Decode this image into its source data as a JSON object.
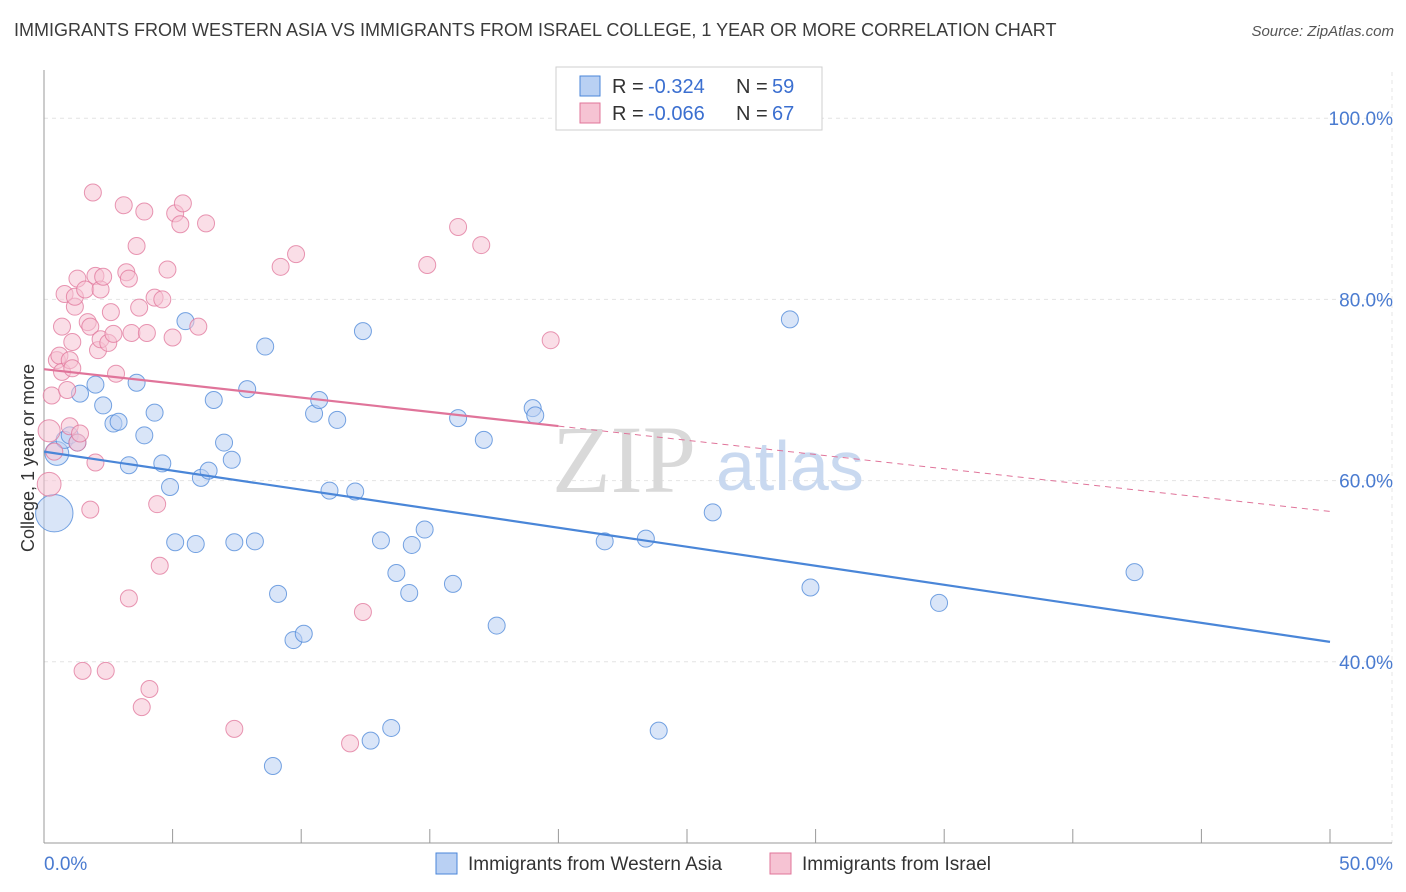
{
  "title": "IMMIGRANTS FROM WESTERN ASIA VS IMMIGRANTS FROM ISRAEL COLLEGE, 1 YEAR OR MORE CORRELATION CHART",
  "source": "Source: ZipAtlas.com",
  "watermark": {
    "zip": "ZIP",
    "atlas": "atlas"
  },
  "legend": {
    "r_label": "R =",
    "n_label": "N =",
    "series": [
      {
        "r": "-0.324",
        "n": "59"
      },
      {
        "r": "-0.066",
        "n": "67"
      }
    ]
  },
  "chart_data": {
    "type": "scatter",
    "title": "IMMIGRANTS FROM WESTERN ASIA VS IMMIGRANTS FROM ISRAEL COLLEGE, 1 YEAR OR MORE CORRELATION CHART",
    "xlabel": "",
    "ylabel": "College, 1 year or more",
    "xlim": [
      0,
      50
    ],
    "ylim": [
      20,
      104
    ],
    "x_tick_labels": [
      {
        "value": 0,
        "label": "0.0%"
      },
      {
        "value": 50,
        "label": "50.0%"
      }
    ],
    "y_tick_labels": [
      {
        "value": 40,
        "label": "40.0%"
      },
      {
        "value": 60,
        "label": "60.0%"
      },
      {
        "value": 80,
        "label": "80.0%"
      },
      {
        "value": 100,
        "label": "100.0%"
      }
    ],
    "x_minor_ticks": [
      0,
      5,
      10,
      15,
      20,
      25,
      30,
      35,
      40,
      45,
      50
    ],
    "grid": true,
    "legend_position": "top-center",
    "series": [
      {
        "name": "Immigrants from Western Asia",
        "color": "#4a86d8",
        "fill": "#b9d0f3",
        "trend": {
          "x0": 0,
          "y0": 63.2,
          "x1": 50,
          "y1": 42.2,
          "dashed_from": null
        },
        "points": [
          {
            "x": 0.4,
            "y": 56.4,
            "s": 2.2
          },
          {
            "x": 0.5,
            "y": 63.0,
            "s": 1.4
          },
          {
            "x": 0.8,
            "y": 64.5
          },
          {
            "x": 1.0,
            "y": 65.0
          },
          {
            "x": 1.3,
            "y": 64.2
          },
          {
            "x": 1.4,
            "y": 69.6
          },
          {
            "x": 2.0,
            "y": 70.6
          },
          {
            "x": 2.3,
            "y": 68.3
          },
          {
            "x": 2.7,
            "y": 66.3
          },
          {
            "x": 2.9,
            "y": 66.5
          },
          {
            "x": 3.3,
            "y": 61.7
          },
          {
            "x": 3.6,
            "y": 70.8
          },
          {
            "x": 3.9,
            "y": 65.0
          },
          {
            "x": 4.3,
            "y": 67.5
          },
          {
            "x": 4.6,
            "y": 61.9
          },
          {
            "x": 4.9,
            "y": 59.3
          },
          {
            "x": 5.1,
            "y": 53.2
          },
          {
            "x": 5.5,
            "y": 77.6
          },
          {
            "x": 5.9,
            "y": 53.0
          },
          {
            "x": 6.1,
            "y": 60.3
          },
          {
            "x": 6.4,
            "y": 61.1
          },
          {
            "x": 6.6,
            "y": 68.9
          },
          {
            "x": 7.0,
            "y": 64.2
          },
          {
            "x": 7.3,
            "y": 62.3
          },
          {
            "x": 7.4,
            "y": 53.2
          },
          {
            "x": 7.9,
            "y": 70.1
          },
          {
            "x": 8.2,
            "y": 53.3
          },
          {
            "x": 8.6,
            "y": 74.8
          },
          {
            "x": 8.9,
            "y": 28.5
          },
          {
            "x": 9.1,
            "y": 47.5
          },
          {
            "x": 9.7,
            "y": 42.4
          },
          {
            "x": 10.1,
            "y": 43.1
          },
          {
            "x": 10.5,
            "y": 67.4
          },
          {
            "x": 10.7,
            "y": 68.9
          },
          {
            "x": 11.1,
            "y": 58.9
          },
          {
            "x": 11.4,
            "y": 66.7
          },
          {
            "x": 12.1,
            "y": 58.8
          },
          {
            "x": 12.4,
            "y": 76.5
          },
          {
            "x": 12.7,
            "y": 31.3
          },
          {
            "x": 13.1,
            "y": 53.4
          },
          {
            "x": 13.5,
            "y": 32.7
          },
          {
            "x": 13.7,
            "y": 49.8
          },
          {
            "x": 14.2,
            "y": 47.6
          },
          {
            "x": 14.3,
            "y": 52.9
          },
          {
            "x": 14.8,
            "y": 54.6
          },
          {
            "x": 15.9,
            "y": 48.6
          },
          {
            "x": 16.1,
            "y": 66.9
          },
          {
            "x": 17.1,
            "y": 64.5
          },
          {
            "x": 17.6,
            "y": 44.0
          },
          {
            "x": 19.0,
            "y": 68.0
          },
          {
            "x": 19.1,
            "y": 67.2
          },
          {
            "x": 21.8,
            "y": 53.3
          },
          {
            "x": 23.4,
            "y": 53.6
          },
          {
            "x": 23.9,
            "y": 32.4
          },
          {
            "x": 26.0,
            "y": 56.5
          },
          {
            "x": 29.0,
            "y": 77.8
          },
          {
            "x": 29.8,
            "y": 48.2
          },
          {
            "x": 34.8,
            "y": 46.5
          },
          {
            "x": 42.4,
            "y": 49.9
          }
        ]
      },
      {
        "name": "Immigrants from Israel",
        "color": "#e0749a",
        "fill": "#f6c3d3",
        "trend": {
          "x0": 0,
          "y0": 72.3,
          "x1": 50,
          "y1": 56.6,
          "dashed_from": 20
        },
        "points": [
          {
            "x": 0.2,
            "y": 59.6,
            "s": 1.4
          },
          {
            "x": 0.2,
            "y": 65.5,
            "s": 1.3
          },
          {
            "x": 0.3,
            "y": 69.4
          },
          {
            "x": 0.4,
            "y": 63.2
          },
          {
            "x": 0.5,
            "y": 73.3
          },
          {
            "x": 0.6,
            "y": 73.8
          },
          {
            "x": 0.7,
            "y": 72.0
          },
          {
            "x": 0.7,
            "y": 77.0
          },
          {
            "x": 0.8,
            "y": 80.6
          },
          {
            "x": 0.9,
            "y": 70.0
          },
          {
            "x": 1.0,
            "y": 66.0
          },
          {
            "x": 1.0,
            "y": 73.3
          },
          {
            "x": 1.1,
            "y": 75.3
          },
          {
            "x": 1.1,
            "y": 72.4
          },
          {
            "x": 1.2,
            "y": 79.2
          },
          {
            "x": 1.2,
            "y": 80.3
          },
          {
            "x": 1.3,
            "y": 64.2
          },
          {
            "x": 1.3,
            "y": 82.3
          },
          {
            "x": 1.4,
            "y": 65.2
          },
          {
            "x": 1.5,
            "y": 39.0
          },
          {
            "x": 1.6,
            "y": 81.1
          },
          {
            "x": 1.7,
            "y": 77.5
          },
          {
            "x": 1.8,
            "y": 56.8
          },
          {
            "x": 1.8,
            "y": 77.0
          },
          {
            "x": 1.9,
            "y": 91.8
          },
          {
            "x": 2.0,
            "y": 62.0
          },
          {
            "x": 2.0,
            "y": 82.6
          },
          {
            "x": 2.1,
            "y": 74.4
          },
          {
            "x": 2.2,
            "y": 75.6
          },
          {
            "x": 2.2,
            "y": 81.1
          },
          {
            "x": 2.3,
            "y": 82.5
          },
          {
            "x": 2.4,
            "y": 39.0
          },
          {
            "x": 2.5,
            "y": 75.2
          },
          {
            "x": 2.6,
            "y": 78.6
          },
          {
            "x": 2.7,
            "y": 76.2
          },
          {
            "x": 2.8,
            "y": 71.8
          },
          {
            "x": 3.1,
            "y": 90.4
          },
          {
            "x": 3.2,
            "y": 83.0
          },
          {
            "x": 3.3,
            "y": 82.3
          },
          {
            "x": 3.3,
            "y": 47.0
          },
          {
            "x": 3.4,
            "y": 76.3
          },
          {
            "x": 3.6,
            "y": 85.9
          },
          {
            "x": 3.7,
            "y": 79.1
          },
          {
            "x": 3.8,
            "y": 35.0
          },
          {
            "x": 3.9,
            "y": 89.7
          },
          {
            "x": 4.0,
            "y": 76.3
          },
          {
            "x": 4.1,
            "y": 37.0
          },
          {
            "x": 4.3,
            "y": 80.2
          },
          {
            "x": 4.4,
            "y": 57.4
          },
          {
            "x": 4.5,
            "y": 50.6
          },
          {
            "x": 4.6,
            "y": 80.0
          },
          {
            "x": 4.8,
            "y": 83.3
          },
          {
            "x": 5.0,
            "y": 75.8
          },
          {
            "x": 5.1,
            "y": 89.5
          },
          {
            "x": 5.3,
            "y": 88.3
          },
          {
            "x": 5.4,
            "y": 90.6
          },
          {
            "x": 6.0,
            "y": 77.0
          },
          {
            "x": 6.3,
            "y": 88.4
          },
          {
            "x": 7.4,
            "y": 32.6
          },
          {
            "x": 9.2,
            "y": 83.6
          },
          {
            "x": 9.8,
            "y": 85.0
          },
          {
            "x": 11.9,
            "y": 31.0
          },
          {
            "x": 12.4,
            "y": 45.5
          },
          {
            "x": 14.9,
            "y": 83.8
          },
          {
            "x": 16.1,
            "y": 88.0
          },
          {
            "x": 17.0,
            "y": 86.0
          },
          {
            "x": 19.7,
            "y": 75.5
          }
        ]
      }
    ]
  },
  "bottom_legend": [
    {
      "label": "Immigrants from Western Asia"
    },
    {
      "label": "Immigrants from Israel"
    }
  ]
}
